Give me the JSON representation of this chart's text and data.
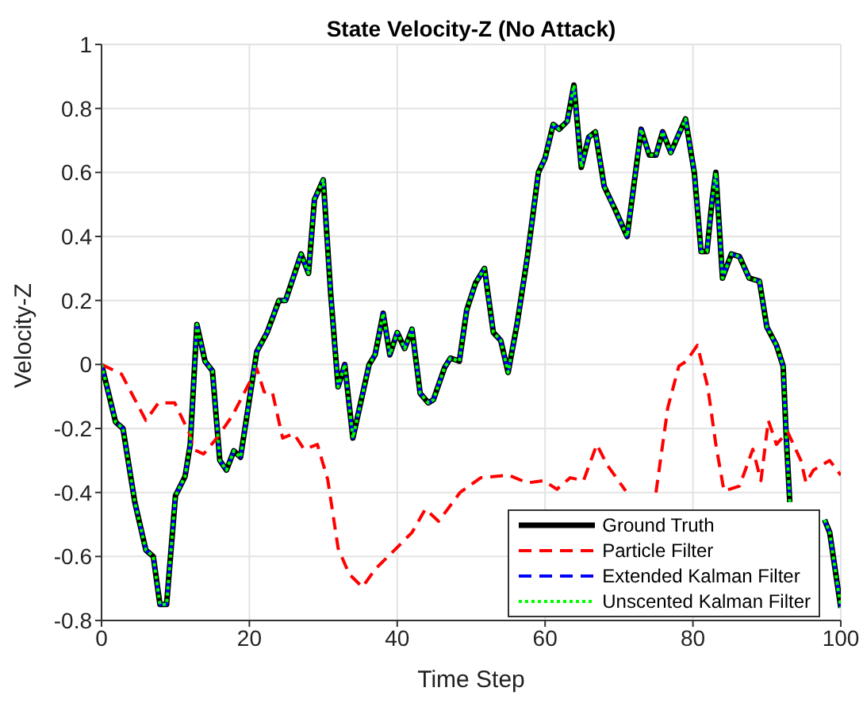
{
  "chart_data": {
    "type": "line",
    "title": "State Velocity-Z (No Attack)",
    "xlabel": "Time Step",
    "ylabel": "Velocity-Z",
    "xlim": [
      0,
      100
    ],
    "xticks": [
      0,
      20,
      40,
      60,
      80,
      100
    ],
    "ylim": [
      -0.8,
      1
    ],
    "yticks": [
      -0.8,
      -0.6,
      -0.4,
      -0.2,
      0,
      0.2,
      0.4,
      0.6,
      0.8,
      1
    ],
    "grid": true,
    "legend": "bottom right",
    "marker": "none",
    "series": [
      {
        "name": "Ground Truth",
        "color": "#000000",
        "line_style": "solid",
        "x": [
          0,
          1.9,
          2.9,
          4.5,
          6,
          7,
          7.9,
          8.8,
          10,
          11.3,
          12,
          12.9,
          14,
          15,
          16,
          16.9,
          17.9,
          18.8,
          21,
          22.4,
          24,
          24.9,
          27,
          28,
          28.8,
          30,
          31,
          32,
          32.9,
          34,
          36.2,
          37,
          38.1,
          39,
          40,
          41,
          42,
          43.1,
          44.2,
          44.9,
          46.4,
          47.2,
          48.4,
          49.4,
          50.6,
          51.8,
          53,
          54,
          55,
          56.2,
          57.6,
          59.1,
          60,
          61.1,
          61.9,
          63,
          63.9,
          64.9,
          65.9,
          66.8,
          68,
          69.5,
          71.1,
          73,
          74.1,
          75,
          75.9,
          77,
          79,
          80.2,
          81.1,
          81.9,
          82.6,
          83.1,
          84,
          85.2,
          86.3,
          87.6,
          89,
          90,
          91.3,
          92.2,
          92.6,
          93.1,
          95,
          97.8,
          98.5,
          100
        ],
        "values": [
          0,
          -0.18,
          -0.2,
          -0.43,
          -0.58,
          -0.6,
          -0.75,
          -0.75,
          -0.41,
          -0.35,
          -0.25,
          0.125,
          0.01,
          -0.02,
          -0.3,
          -0.33,
          -0.27,
          -0.29,
          0.04,
          0.1,
          0.2,
          0.2,
          0.345,
          0.285,
          0.515,
          0.577,
          0.22,
          -0.07,
          0,
          -0.23,
          0,
          0.03,
          0.16,
          0.03,
          0.1,
          0.05,
          0.11,
          -0.09,
          -0.12,
          -0.11,
          -0.01,
          0.02,
          0.01,
          0.17,
          0.255,
          0.3,
          0.1,
          0.075,
          -0.025,
          0.125,
          0.335,
          0.6,
          0.645,
          0.75,
          0.735,
          0.76,
          0.873,
          0.616,
          0.71,
          0.727,
          0.556,
          0.483,
          0.4,
          0.735,
          0.654,
          0.654,
          0.727,
          0.662,
          0.767,
          0.597,
          0.353,
          0.353,
          0.515,
          0.6,
          0.27,
          0.345,
          0.337,
          0.27,
          0.26,
          0.117,
          0.06,
          -0.005,
          -0.216,
          -0.43,
          null,
          -0.485,
          -0.525,
          -0.76
        ]
      },
      {
        "name": "Particle Filter",
        "color": "#ff0000",
        "line_style": "dashed",
        "x": [
          0,
          2.7,
          6,
          7.7,
          9.9,
          11.9,
          12.4,
          13.8,
          15.6,
          17.7,
          21,
          22,
          23.1,
          24.5,
          26,
          27.4,
          29.2,
          30.6,
          32,
          33.5,
          35.3,
          37,
          39.9,
          42,
          43.8,
          45.6,
          48.5,
          51.3,
          55.1,
          57.6,
          59.8,
          61.6,
          63.4,
          65.2,
          67,
          68.4,
          70.9,
          73,
          75,
          76.6,
          78.1,
          79.1,
          80.6,
          82,
          83.1,
          84.2,
          86.3,
          88.1,
          89.2,
          90.2,
          91.3,
          92.8,
          94.6,
          95.3,
          96.3,
          98.5,
          100
        ],
        "values": [
          0,
          -0.03,
          -0.175,
          -0.12,
          -0.12,
          -0.216,
          -0.265,
          -0.28,
          -0.23,
          -0.16,
          -0.013,
          -0.086,
          -0.086,
          -0.23,
          -0.216,
          -0.265,
          -0.25,
          -0.36,
          -0.574,
          -0.655,
          -0.696,
          -0.64,
          -0.574,
          -0.525,
          -0.452,
          -0.49,
          -0.4,
          -0.354,
          -0.346,
          -0.37,
          -0.363,
          -0.39,
          -0.354,
          -0.363,
          -0.25,
          -0.314,
          -0.395,
          null,
          -0.4,
          -0.135,
          -0.005,
          0.01,
          0.06,
          -0.07,
          -0.25,
          -0.395,
          -0.38,
          -0.265,
          -0.363,
          -0.175,
          -0.25,
          -0.21,
          -0.3,
          -0.37,
          -0.33,
          -0.3,
          -0.346
        ]
      },
      {
        "name": "Extended Kalman Filter",
        "color": "#0000ff",
        "line_style": "dashed",
        "x": [
          0,
          1.9,
          2.9,
          4.5,
          6,
          7,
          7.9,
          8.8,
          10,
          11.3,
          12,
          12.9,
          14,
          15,
          16,
          16.9,
          17.9,
          18.8,
          21,
          22.4,
          24,
          24.9,
          27,
          28,
          28.8,
          30,
          31,
          32,
          32.9,
          34,
          36.2,
          37,
          38.1,
          39,
          40,
          41,
          42,
          43.1,
          44.2,
          44.9,
          46.4,
          47.2,
          48.4,
          49.4,
          50.6,
          51.8,
          53,
          54,
          55,
          56.2,
          57.6,
          59.1,
          60,
          61.1,
          61.9,
          63,
          63.9,
          64.9,
          65.9,
          66.8,
          68,
          69.5,
          71.1,
          73,
          74.1,
          75,
          75.9,
          77,
          79,
          80.2,
          81.1,
          81.9,
          82.6,
          83.1,
          84,
          85.2,
          86.3,
          87.6,
          89,
          90,
          91.3,
          92.2,
          92.6,
          93.1,
          95,
          97.8,
          98.5,
          100
        ],
        "values": [
          0,
          -0.18,
          -0.2,
          -0.43,
          -0.58,
          -0.6,
          -0.75,
          -0.75,
          -0.41,
          -0.35,
          -0.25,
          0.125,
          0.01,
          -0.02,
          -0.3,
          -0.33,
          -0.27,
          -0.29,
          0.04,
          0.1,
          0.2,
          0.2,
          0.345,
          0.285,
          0.515,
          0.577,
          0.22,
          -0.07,
          0,
          -0.23,
          0,
          0.03,
          0.16,
          0.03,
          0.1,
          0.05,
          0.11,
          -0.09,
          -0.12,
          -0.11,
          -0.01,
          0.02,
          0.01,
          0.17,
          0.255,
          0.3,
          0.1,
          0.075,
          -0.025,
          0.125,
          0.335,
          0.6,
          0.645,
          0.75,
          0.735,
          0.76,
          0.873,
          0.616,
          0.71,
          0.727,
          0.556,
          0.483,
          0.4,
          0.735,
          0.654,
          0.654,
          0.727,
          0.662,
          0.767,
          0.597,
          0.353,
          0.353,
          0.515,
          0.6,
          0.27,
          0.345,
          0.337,
          0.27,
          0.26,
          0.117,
          0.06,
          -0.005,
          -0.216,
          -0.43,
          null,
          -0.485,
          -0.525,
          -0.76
        ]
      },
      {
        "name": "Unscented Kalman Filter",
        "color": "#00ff00",
        "line_style": "dotted",
        "x": [
          0,
          1.9,
          2.9,
          4.5,
          6,
          7,
          7.9,
          8.8,
          10,
          11.3,
          12,
          12.9,
          14,
          15,
          16,
          16.9,
          17.9,
          18.8,
          21,
          22.4,
          24,
          24.9,
          27,
          28,
          28.8,
          30,
          31,
          32,
          32.9,
          34,
          36.2,
          37,
          38.1,
          39,
          40,
          41,
          42,
          43.1,
          44.2,
          44.9,
          46.4,
          47.2,
          48.4,
          49.4,
          50.6,
          51.8,
          53,
          54,
          55,
          56.2,
          57.6,
          59.1,
          60,
          61.1,
          61.9,
          63,
          63.9,
          64.9,
          65.9,
          66.8,
          68,
          69.5,
          71.1,
          73,
          74.1,
          75,
          75.9,
          77,
          79,
          80.2,
          81.1,
          81.9,
          82.6,
          83.1,
          84,
          85.2,
          86.3,
          87.6,
          89,
          90,
          91.3,
          92.2,
          92.6,
          93.1,
          95,
          97.8,
          98.5,
          100
        ],
        "values": [
          0,
          -0.18,
          -0.2,
          -0.43,
          -0.58,
          -0.6,
          -0.75,
          -0.75,
          -0.41,
          -0.35,
          -0.25,
          0.125,
          0.01,
          -0.02,
          -0.3,
          -0.33,
          -0.27,
          -0.29,
          0.04,
          0.1,
          0.2,
          0.2,
          0.345,
          0.285,
          0.515,
          0.577,
          0.22,
          -0.07,
          0,
          -0.23,
          0,
          0.03,
          0.16,
          0.03,
          0.1,
          0.05,
          0.11,
          -0.09,
          -0.12,
          -0.11,
          -0.01,
          0.02,
          0.01,
          0.17,
          0.255,
          0.3,
          0.1,
          0.075,
          -0.025,
          0.125,
          0.335,
          0.6,
          0.645,
          0.75,
          0.735,
          0.76,
          0.873,
          0.616,
          0.71,
          0.727,
          0.556,
          0.483,
          0.4,
          0.735,
          0.654,
          0.654,
          0.727,
          0.662,
          0.767,
          0.597,
          0.353,
          0.353,
          0.515,
          0.6,
          0.27,
          0.345,
          0.337,
          0.27,
          0.26,
          0.117,
          0.06,
          -0.005,
          -0.216,
          -0.43,
          null,
          -0.485,
          -0.525,
          -0.76
        ]
      }
    ]
  }
}
